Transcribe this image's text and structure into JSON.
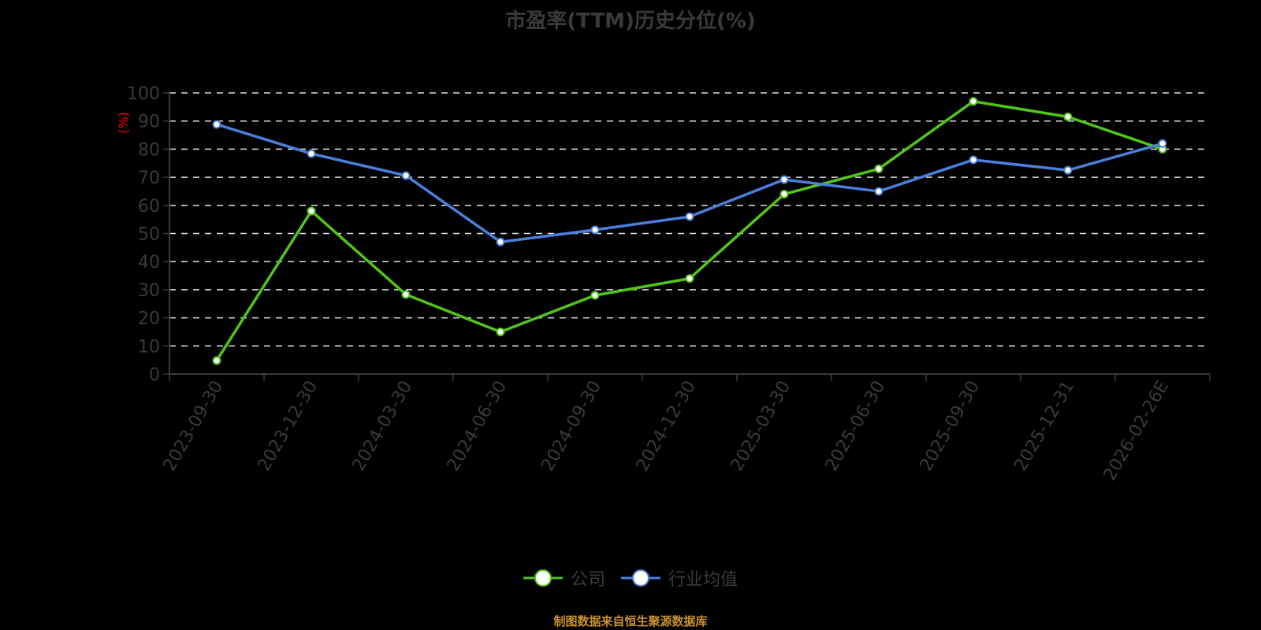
{
  "title": "市盈率(TTM)历史分位(%)",
  "y_unit_label": "(%)",
  "legend": [
    {
      "label": "公司",
      "color": "#52c41a"
    },
    {
      "label": "行业均值",
      "color": "#4a7fdc"
    }
  ],
  "footer": "制图数据来自恒生聚源数据库",
  "chart_data": {
    "type": "line",
    "title": "市盈率(TTM)历史分位(%)",
    "xlabel": "",
    "ylabel": "(%)",
    "ylim": [
      0,
      100
    ],
    "yticks": [
      0,
      10,
      20,
      30,
      40,
      50,
      60,
      70,
      80,
      90,
      100
    ],
    "grid": true,
    "legend_position": "bottom",
    "categories": [
      "2023-09-30",
      "2023-12-30",
      "2024-03-30",
      "2024-06-30",
      "2024-09-30",
      "2024-12-30",
      "2025-03-30",
      "2025-06-30",
      "2025-09-30",
      "2025-12-31",
      "2026-02-26E"
    ],
    "series": [
      {
        "name": "公司",
        "color": "#52c41a",
        "values": [
          4.8,
          58,
          28.3,
          15,
          28,
          34,
          64,
          73,
          97,
          91.5,
          80
        ]
      },
      {
        "name": "行业均值",
        "color": "#4a7fdc",
        "values": [
          88.8,
          78.4,
          70.6,
          47,
          51.3,
          56,
          69.2,
          65,
          76.2,
          72.5,
          82
        ]
      }
    ]
  }
}
